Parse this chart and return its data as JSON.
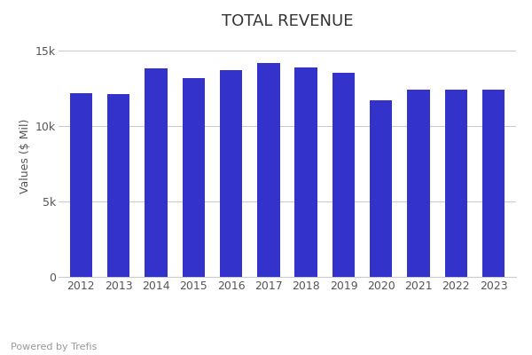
{
  "title": "TOTAL REVENUE",
  "ylabel": "Values ($ Mil)",
  "years": [
    2012,
    2013,
    2014,
    2015,
    2016,
    2017,
    2018,
    2019,
    2020,
    2021,
    2022,
    2023
  ],
  "values": [
    12200,
    12100,
    13800,
    13200,
    13700,
    14200,
    13900,
    13500,
    11700,
    12400,
    12400,
    12400
  ],
  "bar_color": "#3333cc",
  "ylim": [
    0,
    16000
  ],
  "yticks": [
    0,
    5000,
    10000,
    15000
  ],
  "ytick_labels": [
    "0",
    "5k",
    "10k",
    "15k"
  ],
  "legend_dot_color": "#3333cc",
  "footer_text": "Powered by Trefis",
  "background_color": "#ffffff",
  "grid_color": "#cccccc",
  "title_fontsize": 13,
  "axis_fontsize": 9,
  "legend_fontsize": 10,
  "footer_fontsize": 8
}
